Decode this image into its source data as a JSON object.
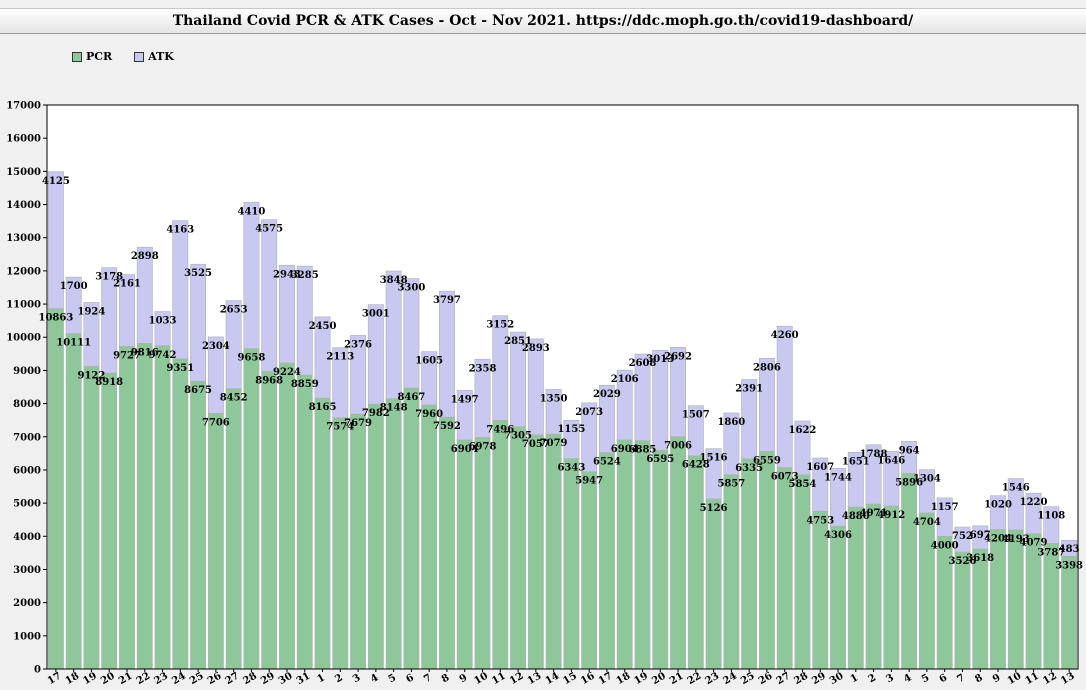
{
  "title": "Thailand Covid PCR & ATK Cases - Oct - Nov 2021. https://ddc.moph.go.th/covid19-dashboard/",
  "colors": {
    "pcr": "#8ec89a",
    "atk": "#c8c8f0",
    "background": "#f0f0f0",
    "plot_bg": "#ffffff"
  },
  "chart_data": {
    "type": "bar",
    "stacked": true,
    "categories": [
      "17",
      "18",
      "19",
      "20",
      "21",
      "22",
      "23",
      "24",
      "25",
      "26",
      "27",
      "28",
      "29",
      "30",
      "31",
      "1",
      "2",
      "3",
      "4",
      "5",
      "6",
      "7",
      "8",
      "9",
      "10",
      "11",
      "12",
      "13",
      "14",
      "15",
      "16",
      "17",
      "18",
      "19",
      "20",
      "21",
      "22",
      "23",
      "24",
      "25",
      "26",
      "27",
      "28",
      "29",
      "30",
      "1",
      "2",
      "3",
      "4",
      "5",
      "6",
      "7",
      "8",
      "9",
      "10",
      "11",
      "12",
      "13"
    ],
    "series": [
      {
        "name": "PCR",
        "values": [
          10863,
          10111,
          9122,
          8918,
          9727,
          9816,
          9742,
          9351,
          8675,
          7706,
          8452,
          9658,
          8968,
          9224,
          8859,
          8165,
          7574,
          7679,
          7982,
          8148,
          8467,
          7960,
          7592,
          6904,
          6978,
          7496,
          7305,
          7057,
          7079,
          6343,
          5947,
          6524,
          6904,
          6885,
          6595,
          7006,
          6428,
          5126,
          5857,
          6335,
          6559,
          6073,
          5854,
          4753,
          4306,
          4880,
          4971,
          4912,
          5896,
          4704,
          4000,
          3526,
          3618,
          4204,
          4193,
          4079,
          3787,
          3398
        ]
      },
      {
        "name": "ATK",
        "values": [
          4125,
          1700,
          1924,
          3178,
          2161,
          2898,
          1033,
          4163,
          3525,
          2304,
          2653,
          4410,
          4575,
          2943,
          3285,
          2450,
          2113,
          2376,
          3001,
          3848,
          3300,
          1605,
          3797,
          1497,
          2358,
          3152,
          2851,
          2893,
          1350,
          1155,
          2073,
          2029,
          2106,
          2608,
          3013,
          2692,
          1507,
          1516,
          1860,
          2391,
          2806,
          4260,
          1622,
          1607,
          1744,
          1651,
          1788,
          1646,
          964,
          1304,
          1157,
          752,
          697,
          1020,
          1546,
          1220,
          1108,
          483
        ]
      }
    ],
    "ylim": [
      0,
      17000
    ],
    "yticks": [
      0,
      1000,
      2000,
      3000,
      4000,
      5000,
      6000,
      7000,
      8000,
      9000,
      10000,
      11000,
      12000,
      13000,
      14000,
      15000,
      16000,
      17000
    ],
    "legend_position": "top-left",
    "grid": false
  }
}
